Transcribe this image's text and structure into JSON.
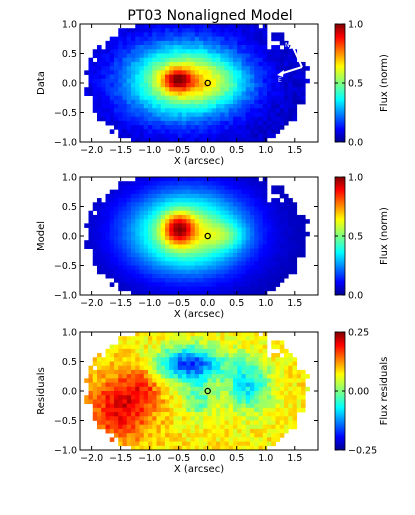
{
  "title": "PT03 Nonaligned Model",
  "colors": {
    "arrow": "#ffffff",
    "marker": "#000000",
    "frame": "#000000"
  },
  "chart_data": [
    {
      "type": "heatmap",
      "name": "data",
      "ylabel": "Data",
      "xlabel": "X (arcsec)",
      "xlim": [
        -2.2,
        1.9
      ],
      "ylim": [
        -1.0,
        1.0
      ],
      "xticks": [
        -2.0,
        -1.5,
        -1.0,
        -0.5,
        0.0,
        0.5,
        1.0,
        1.5
      ],
      "xtick_labels": [
        "−2.0",
        "−1.5",
        "−1.0",
        "−0.5",
        "0.0",
        "0.5",
        "1.0",
        "1.5"
      ],
      "yticks": [
        -1.0,
        -0.5,
        0.0,
        0.5,
        1.0
      ],
      "ytick_labels": [
        "−1.0",
        "−0.5",
        "0.0",
        "0.5",
        "1.0"
      ],
      "colorbar": {
        "label": "Flux (norm)",
        "range": [
          0,
          1
        ],
        "ticks": [
          0,
          0.5,
          1
        ],
        "tick_labels": [
          "0.0",
          "0.5",
          "1.0"
        ],
        "colormap": "jet"
      },
      "peak": {
        "x": -0.5,
        "y": 0.05,
        "value": 0.95
      },
      "center_marker": {
        "x": 0.0,
        "y": 0.0
      },
      "compass": {
        "labels": [
          "N",
          "E"
        ]
      }
    },
    {
      "type": "heatmap",
      "name": "model",
      "ylabel": "Model",
      "xlabel": "X (arcsec)",
      "xlim": [
        -2.2,
        1.9
      ],
      "ylim": [
        -1.0,
        1.0
      ],
      "xticks": [
        -2.0,
        -1.5,
        -1.0,
        -0.5,
        0.0,
        0.5,
        1.0,
        1.5
      ],
      "xtick_labels": [
        "−2.0",
        "−1.5",
        "−1.0",
        "−0.5",
        "0.0",
        "0.5",
        "1.0",
        "1.5"
      ],
      "yticks": [
        -1.0,
        -0.5,
        0.0,
        0.5,
        1.0
      ],
      "ytick_labels": [
        "−1.0",
        "−0.5",
        "0.0",
        "0.5",
        "1.0"
      ],
      "colorbar": {
        "label": "Flux (norm)",
        "range": [
          0,
          1
        ],
        "ticks": [
          0,
          0.5,
          1
        ],
        "tick_labels": [
          "0.0",
          "0.5",
          "1.0"
        ],
        "colormap": "jet"
      },
      "peak": {
        "x": -0.5,
        "y": 0.1,
        "value": 1.0
      },
      "center_marker": {
        "x": 0.0,
        "y": 0.0
      }
    },
    {
      "type": "heatmap",
      "name": "residuals",
      "ylabel": "Residuals",
      "xlabel": "X (arcsec)",
      "xlim": [
        -2.2,
        1.9
      ],
      "ylim": [
        -1.0,
        1.0
      ],
      "xticks": [
        -2.0,
        -1.5,
        -1.0,
        -0.5,
        0.0,
        0.5,
        1.0,
        1.5
      ],
      "xtick_labels": [
        "−2.0",
        "−1.5",
        "−1.0",
        "−0.5",
        "0.0",
        "0.5",
        "1.0",
        "1.5"
      ],
      "yticks": [
        -1.0,
        -0.5,
        0.0,
        0.5,
        1.0
      ],
      "ytick_labels": [
        "−1.0",
        "−0.5",
        "0.0",
        "0.5",
        "1.0"
      ],
      "colorbar": {
        "label": "Flux residuals",
        "range": [
          -0.25,
          0.25
        ],
        "ticks": [
          -0.25,
          0,
          0.25
        ],
        "tick_labels": [
          "−0.25",
          "0.00",
          "0.25"
        ],
        "colormap": "jet"
      },
      "center_marker": {
        "x": 0.0,
        "y": 0.0
      }
    }
  ]
}
